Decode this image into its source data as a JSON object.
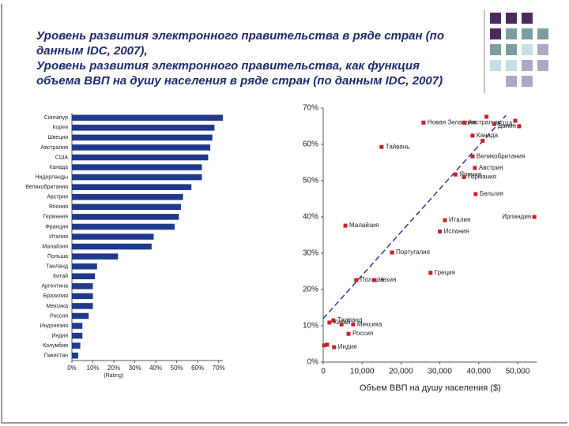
{
  "title_lines": [
    "Уровень развития электронного правительства в ряде стран  (по",
    "данным IDC, 2007),",
    "Уровень развития электронного правительства, как функция",
    "объема ВВП на душу населения в ряде  стран (по данным IDC, 2007)"
  ],
  "chart_data": [
    {
      "type": "hbar",
      "color": "#1f3a8a",
      "x_label": "(Rating)",
      "categories": [
        "Сингапур",
        "Корея",
        "Швеция",
        "Австралия",
        "США",
        "Канада",
        "Нидерланды",
        "Великобритания",
        "Австрия",
        "Япония",
        "Германия",
        "Франция",
        "Италия",
        "Малайзия",
        "Польша",
        "Таиланд",
        "Китай",
        "Аргентина",
        "Бразилия",
        "Мексика",
        "Россия",
        "Индонезия",
        "Индия",
        "Колумбия",
        "Пакистан"
      ],
      "values": [
        72,
        68,
        67,
        66,
        65,
        62,
        62,
        57,
        53,
        52,
        51,
        49,
        39,
        38,
        22,
        12,
        11,
        10,
        10,
        10,
        8,
        5,
        5,
        4,
        3
      ],
      "xlim": [
        0,
        72
      ],
      "xticks": [
        {
          "value": 0,
          "label": "0%"
        },
        {
          "value": 10,
          "label": "10%"
        },
        {
          "value": 20,
          "label": "20%"
        },
        {
          "value": 30,
          "label": "30%"
        },
        {
          "value": 40,
          "label": "40%"
        },
        {
          "value": 50,
          "label": "50%"
        },
        {
          "value": 60,
          "label": "60%"
        },
        {
          "value": 70,
          "label": "70%"
        }
      ]
    },
    {
      "type": "scatter",
      "color": "#c8202a",
      "x_label": "Объем ВВП на душу населения ($)",
      "point_labels": [
        "Новая Зеландия",
        "Австралия",
        "США",
        null,
        "Дания",
        null,
        "Канада",
        null,
        "Тайвань",
        "Великобритания",
        "Австрия",
        "Япония",
        "Германия",
        "Бельгия",
        "Ирландия",
        "Италия",
        "Испания",
        "Малайзия",
        "Португалия",
        "Польша",
        "Чехия",
        "Греция",
        "Таиланд",
        "Китай",
        null,
        "Мексика",
        "Россия",
        "Индия",
        null,
        null
      ],
      "x": [
        25800,
        36200,
        44000,
        42000,
        50400,
        49400,
        38400,
        41000,
        15000,
        38400,
        39000,
        34000,
        36200,
        39200,
        54300,
        31300,
        30000,
        5700,
        17700,
        8500,
        13200,
        27600,
        2600,
        1600,
        4700,
        7700,
        6500,
        2800,
        200,
        1000
      ],
      "values": [
        66,
        66,
        65.6,
        67.6,
        65,
        66.5,
        62.4,
        61,
        59.3,
        56.7,
        53.5,
        51.7,
        51,
        46.3,
        40,
        39.1,
        36,
        37.6,
        30.2,
        22.6,
        22.6,
        24.6,
        11.5,
        10.9,
        10.4,
        10.4,
        7.8,
        4.1,
        4.6,
        4.8
      ],
      "trend": {
        "color": "#2a3a9c",
        "x": [
          0,
          47000
        ],
        "values": [
          12,
          68
        ]
      },
      "xlim": [
        0,
        55000
      ],
      "ylim": [
        0,
        70
      ],
      "xticks": [
        {
          "value": 0,
          "label": "0"
        },
        {
          "value": 10000,
          "label": "10,000"
        },
        {
          "value": 20000,
          "label": "20,000"
        },
        {
          "value": 30000,
          "label": "30,000"
        },
        {
          "value": 40000,
          "label": "40,000"
        },
        {
          "value": 50000,
          "label": "50,000"
        }
      ],
      "yticks": [
        {
          "value": 0,
          "label": "0%"
        },
        {
          "value": 10,
          "label": "10%"
        },
        {
          "value": 20,
          "label": "20%"
        },
        {
          "value": 30,
          "label": "30%"
        },
        {
          "value": 40,
          "label": "40%"
        },
        {
          "value": 50,
          "label": "50%"
        },
        {
          "value": 60,
          "label": "60%"
        },
        {
          "value": 70,
          "label": "70%"
        }
      ]
    }
  ]
}
